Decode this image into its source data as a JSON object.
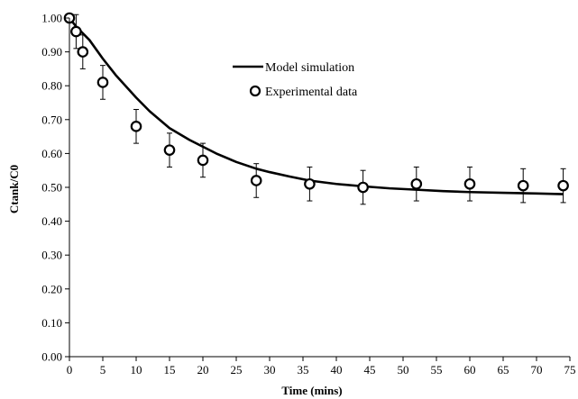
{
  "chart_data": {
    "type": "scatter",
    "title": "",
    "xlabel": "Time (mins)",
    "ylabel": "Ctank/C0",
    "xlim": [
      0,
      75
    ],
    "ylim": [
      0,
      1
    ],
    "x_ticks": [
      "0",
      "5",
      "10",
      "15",
      "20",
      "25",
      "30",
      "35",
      "40",
      "45",
      "50",
      "55",
      "60",
      "65",
      "70",
      "75"
    ],
    "y_ticks": [
      "0.00",
      "0.10",
      "0.20",
      "0.30",
      "0.40",
      "0.50",
      "0.60",
      "0.70",
      "0.80",
      "0.90",
      "1.00"
    ],
    "grid": false,
    "legend_position": "upper-right",
    "series": [
      {
        "name": "Model simulation",
        "kind": "line",
        "color": "#000000",
        "x": [
          0,
          1,
          2,
          3,
          5,
          7,
          10,
          12,
          15,
          18,
          20,
          22,
          25,
          28,
          30,
          33,
          36,
          40,
          44,
          48,
          52,
          56,
          60,
          65,
          70,
          74
        ],
        "y": [
          1.0,
          0.975,
          0.955,
          0.935,
          0.88,
          0.83,
          0.765,
          0.725,
          0.675,
          0.64,
          0.62,
          0.6,
          0.575,
          0.555,
          0.545,
          0.532,
          0.52,
          0.51,
          0.503,
          0.497,
          0.493,
          0.489,
          0.486,
          0.484,
          0.482,
          0.48
        ]
      },
      {
        "name": "Experimental data",
        "kind": "scatter",
        "marker": "open-circle",
        "color": "#000000",
        "x": [
          0,
          1,
          2,
          5,
          10,
          15,
          20,
          28,
          36,
          44,
          52,
          60,
          68,
          74
        ],
        "y": [
          1.0,
          0.96,
          0.9,
          0.81,
          0.68,
          0.61,
          0.58,
          0.52,
          0.51,
          0.5,
          0.51,
          0.51,
          0.505,
          0.505
        ],
        "error": [
          0.0,
          0.05,
          0.05,
          0.05,
          0.05,
          0.05,
          0.05,
          0.05,
          0.05,
          0.05,
          0.05,
          0.05,
          0.05,
          0.05
        ]
      }
    ]
  }
}
